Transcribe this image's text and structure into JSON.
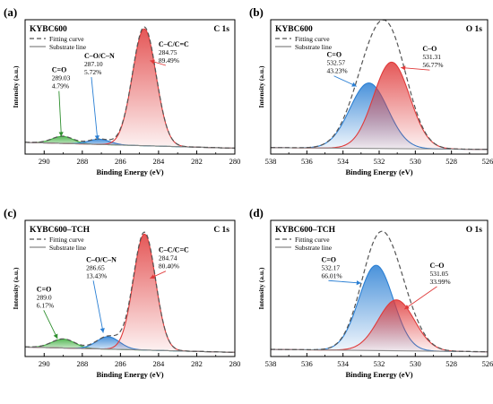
{
  "colors": {
    "fit": "#555555",
    "substrate": "#888888",
    "c_cc": "#e03a3a",
    "c_co": "#2a7fd4",
    "c_eq": "#3fae3f",
    "o_co": "#e03a3a",
    "o_eq": "#2a7fd4"
  },
  "chart_data": [
    {
      "id": "a",
      "type": "line",
      "panel_label": "(a)",
      "sample": "KYBC600",
      "region": "C 1s",
      "xlabel": "Binding Energy (eV)",
      "ylabel": "Intensity (a.u.)",
      "xlim": [
        291,
        280
      ],
      "xticks": [
        290,
        288,
        286,
        284,
        282,
        280
      ],
      "ylim": [
        0,
        1.15
      ],
      "baseline": [
        0.1,
        0.05
      ],
      "fit_label": "Fitting curve",
      "substrate_label": "Substrate line",
      "peaks": [
        {
          "label": "C=O",
          "center": "289.03",
          "percent": "4.79%",
          "x": 289.03,
          "height": 0.06,
          "width": 0.55,
          "color": "#3fae3f",
          "label_x": 289.6,
          "label_y": 0.7,
          "arrow_x": 289.1,
          "arrow_y": 0.15
        },
        {
          "label": "C–O/C–N",
          "center": "287.10",
          "percent": "5.72%",
          "x": 287.1,
          "height": 0.045,
          "width": 0.55,
          "color": "#2a7fd4",
          "label_x": 287.9,
          "label_y": 0.82,
          "arrow_x": 287.2,
          "arrow_y": 0.12
        },
        {
          "label": "C–C/C=C",
          "center": "284.75",
          "percent": "89.49%",
          "x": 284.75,
          "height": 1.0,
          "width": 0.62,
          "color": "#e03a3a",
          "label_x": 284.0,
          "label_y": 0.92,
          "arrow_x": 284.45,
          "arrow_y": 0.8
        }
      ]
    },
    {
      "id": "b",
      "type": "line",
      "panel_label": "(b)",
      "sample": "KYBC600",
      "region": "O 1s",
      "xlabel": "Binding Energy (eV)",
      "ylabel": "Intensity (a.u.)",
      "xlim": [
        538,
        526
      ],
      "xticks": [
        538,
        536,
        534,
        532,
        530,
        528,
        526
      ],
      "ylim": [
        0,
        1.15
      ],
      "baseline": [
        0.055,
        0.04
      ],
      "fit_label": "Fitting curve",
      "substrate_label": "Substrate line",
      "peaks": [
        {
          "label": "C=O",
          "center": "532.57",
          "percent": "43.23%",
          "x": 532.57,
          "height": 0.56,
          "width": 1.05,
          "color": "#2a7fd4",
          "label_x": 534.9,
          "label_y": 0.83,
          "arrow_x": 533.25,
          "arrow_y": 0.58
        },
        {
          "label": "C–O",
          "center": "531.31",
          "percent": "56.77%",
          "x": 531.31,
          "height": 0.74,
          "width": 1.0,
          "color": "#e03a3a",
          "label_x": 529.6,
          "label_y": 0.88,
          "arrow_x": 530.8,
          "arrow_y": 0.74
        }
      ]
    },
    {
      "id": "c",
      "type": "line",
      "panel_label": "(c)",
      "sample": "KYBC600–TCH",
      "region": "C 1s",
      "xlabel": "Binding Energy (eV)",
      "ylabel": "Intensity (a.u.)",
      "xlim": [
        291,
        280
      ],
      "xticks": [
        290,
        288,
        286,
        284,
        282,
        280
      ],
      "ylim": [
        0,
        1.15
      ],
      "baseline": [
        0.08,
        0.035
      ],
      "fit_label": "Fitting curve",
      "substrate_label": "Substrate line",
      "peaks": [
        {
          "label": "C=O",
          "center": "289.0",
          "percent": "6.17%",
          "x": 289.0,
          "height": 0.075,
          "width": 0.6,
          "color": "#3fae3f",
          "label_x": 290.4,
          "label_y": 0.55,
          "arrow_x": 289.3,
          "arrow_y": 0.15
        },
        {
          "label": "C–O/C–N",
          "center": "286.65",
          "percent": "13.43%",
          "x": 286.65,
          "height": 0.105,
          "width": 0.6,
          "color": "#2a7fd4",
          "label_x": 287.8,
          "label_y": 0.8,
          "arrow_x": 286.9,
          "arrow_y": 0.2
        },
        {
          "label": "C–C/C=C",
          "center": "284.74",
          "percent": "80.40%",
          "x": 284.74,
          "height": 0.98,
          "width": 0.58,
          "color": "#e03a3a",
          "label_x": 284.0,
          "label_y": 0.88,
          "arrow_x": 284.45,
          "arrow_y": 0.66
        }
      ]
    },
    {
      "id": "d",
      "type": "line",
      "panel_label": "(d)",
      "sample": "KYBC600–TCH",
      "region": "O 1s",
      "xlabel": "Binding Energy (eV)",
      "ylabel": "Intensity (a.u.)",
      "xlim": [
        538,
        526
      ],
      "xticks": [
        538,
        536,
        534,
        532,
        530,
        528,
        526
      ],
      "ylim": [
        0,
        1.15
      ],
      "baseline": [
        0.06,
        0.04
      ],
      "fit_label": "Fitting curve",
      "substrate_label": "Substrate line",
      "peaks": [
        {
          "label": "C=O",
          "center": "532.17",
          "percent": "66.01%",
          "x": 532.17,
          "height": 0.72,
          "width": 0.95,
          "color": "#2a7fd4",
          "label_x": 535.2,
          "label_y": 0.8,
          "arrow_x": 533.0,
          "arrow_y": 0.62
        },
        {
          "label": "C–O",
          "center": "531.05",
          "percent": "33.99%",
          "x": 531.05,
          "height": 0.43,
          "width": 1.0,
          "color": "#e03a3a",
          "label_x": 529.2,
          "label_y": 0.75,
          "arrow_x": 530.6,
          "arrow_y": 0.4
        }
      ]
    }
  ]
}
